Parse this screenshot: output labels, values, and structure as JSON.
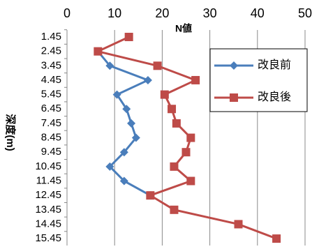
{
  "chart_data": {
    "type": "line",
    "x_label": "N値",
    "y_label": "深度(m)",
    "categories": [
      "1.45",
      "2.45",
      "3.45",
      "4.45",
      "5.45",
      "6.45",
      "7.45",
      "8.45",
      "9.45",
      "10.45",
      "11.45",
      "12.45",
      "13.45",
      "14.45",
      "15.45"
    ],
    "series": [
      {
        "name": "改良前",
        "color": "#4a7ebb",
        "marker": "diamond",
        "values": [
          null,
          6.5,
          9,
          17,
          10.5,
          12.5,
          13.5,
          14.5,
          12,
          9,
          12,
          17.5,
          null,
          null,
          null
        ]
      },
      {
        "name": "改良後",
        "color": "#be4b48",
        "marker": "square",
        "values": [
          13,
          6.5,
          19,
          27,
          20.5,
          22,
          23,
          26,
          25,
          22.5,
          26,
          17.5,
          22.5,
          36,
          44
        ]
      }
    ],
    "xlim": [
      0,
      50
    ],
    "xticks": [
      0,
      10,
      20,
      30,
      40,
      50
    ],
    "grid": true,
    "legend": "right"
  }
}
